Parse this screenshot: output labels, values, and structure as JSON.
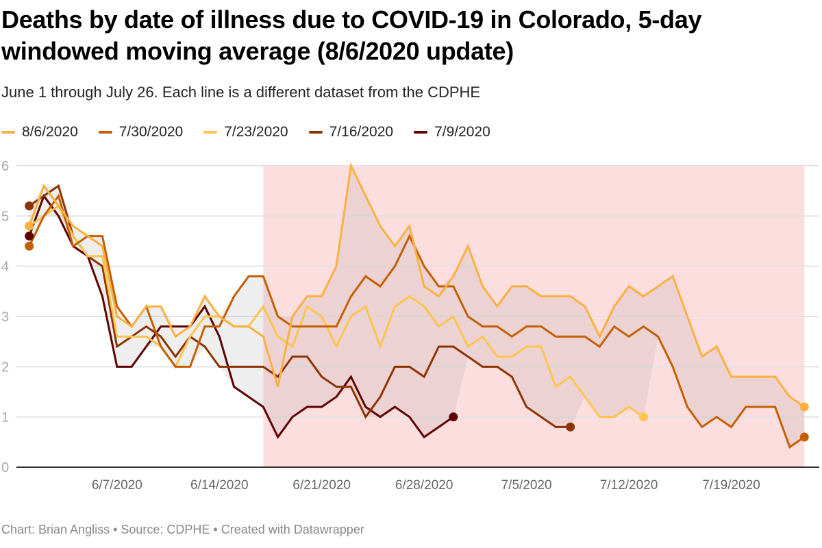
{
  "header": {
    "title": "Deaths by date of illness due to COVID-19 in Colorado, 5-day windowed moving average (8/6/2020 update)",
    "subtitle": "June 1 through July 26. Each line is a different dataset from the CDPHE"
  },
  "footer": {
    "text": "Chart: Brian Angliss • Source: CDPHE • Created with Datawrapper"
  },
  "legend": [
    {
      "label": "8/6/2020",
      "color": "#fbb040"
    },
    {
      "label": "7/30/2020",
      "color": "#c45e00"
    },
    {
      "label": "7/23/2020",
      "color": "#fec44f"
    },
    {
      "label": "7/16/2020",
      "color": "#8c3300"
    },
    {
      "label": "7/9/2020",
      "color": "#5e0000"
    }
  ],
  "chart_data": {
    "type": "line",
    "title": "Deaths by date of illness due to COVID-19 in Colorado, 5-day windowed moving average (8/6/2020 update)",
    "subtitle": "June 1 through July 26. Each line is a different dataset from the CDPHE",
    "xlabel": "",
    "ylabel": "",
    "x_start": "6/1/2020",
    "x_step_days": 1,
    "ylim": [
      0,
      6
    ],
    "yticks": [
      0,
      1,
      2,
      3,
      4,
      5,
      6
    ],
    "xticks": [
      {
        "day": 6,
        "label": "6/7/2020"
      },
      {
        "day": 13,
        "label": "6/14/2020"
      },
      {
        "day": 20,
        "label": "6/21/2020"
      },
      {
        "day": 27,
        "label": "6/28/2020"
      },
      {
        "day": 34,
        "label": "7/5/2020"
      },
      {
        "day": 41,
        "label": "7/12/2020"
      },
      {
        "day": 48,
        "label": "7/19/2020"
      }
    ],
    "grid": true,
    "legend_position": "top-left",
    "highlight_range": {
      "from_day": 16,
      "to_day": 53,
      "color": "#fddede"
    },
    "series": [
      {
        "name": "8/6/2020",
        "color": "#fbb040",
        "values": [
          4.8,
          5.6,
          5.2,
          4.8,
          4.6,
          4.4,
          3.0,
          2.8,
          3.2,
          3.2,
          2.6,
          2.8,
          3.4,
          3.0,
          2.8,
          2.8,
          2.6,
          1.6,
          3.0,
          3.4,
          3.4,
          4.0,
          6.0,
          5.4,
          4.8,
          4.4,
          4.8,
          3.6,
          3.4,
          3.8,
          4.4,
          3.6,
          3.2,
          3.6,
          3.6,
          3.4,
          3.4,
          3.4,
          3.2,
          2.6,
          3.2,
          3.6,
          3.4,
          3.6,
          3.8,
          3.0,
          2.2,
          2.4,
          1.8,
          1.8,
          1.8,
          1.8,
          1.4,
          1.2
        ]
      },
      {
        "name": "7/30/2020",
        "color": "#c45e00",
        "values": [
          4.4,
          5.0,
          5.4,
          4.4,
          4.6,
          4.6,
          3.2,
          2.8,
          3.2,
          2.4,
          2.0,
          2.0,
          2.8,
          2.8,
          3.4,
          3.8,
          3.8,
          3.0,
          2.8,
          2.8,
          2.8,
          2.8,
          3.4,
          3.8,
          3.6,
          4.0,
          4.6,
          4.0,
          3.6,
          3.6,
          3.0,
          2.8,
          2.8,
          2.6,
          2.8,
          2.8,
          2.6,
          2.6,
          2.6,
          2.4,
          2.8,
          2.6,
          2.8,
          2.6,
          2.0,
          1.2,
          0.8,
          1.0,
          0.8,
          1.2,
          1.2,
          1.2,
          0.4,
          0.6
        ]
      },
      {
        "name": "7/23/2020",
        "color": "#fec44f",
        "values": [
          4.8,
          5.0,
          5.2,
          4.6,
          4.2,
          4.2,
          2.6,
          2.6,
          2.6,
          2.4,
          2.0,
          2.6,
          3.0,
          3.0,
          2.8,
          2.8,
          3.2,
          2.6,
          2.4,
          3.2,
          3.0,
          2.4,
          3.0,
          3.2,
          2.4,
          3.2,
          3.4,
          3.2,
          2.8,
          3.0,
          2.4,
          2.6,
          2.2,
          2.2,
          2.4,
          2.4,
          1.6,
          1.8,
          1.4,
          1.0,
          1.0,
          1.2,
          1.0
        ]
      },
      {
        "name": "7/16/2020",
        "color": "#8c3300",
        "values": [
          5.2,
          5.4,
          5.6,
          4.6,
          4.2,
          4.0,
          2.4,
          2.6,
          2.8,
          2.6,
          2.2,
          2.6,
          2.4,
          2.0,
          2.0,
          2.0,
          2.0,
          1.8,
          2.2,
          2.2,
          1.8,
          1.6,
          1.6,
          1.0,
          1.4,
          2.0,
          2.0,
          1.8,
          2.4,
          2.4,
          2.2,
          2.0,
          2.0,
          1.8,
          1.2,
          1.0,
          0.8,
          0.8
        ]
      },
      {
        "name": "7/9/2020",
        "color": "#5e0000",
        "values": [
          4.6,
          5.4,
          5.0,
          4.4,
          4.2,
          3.4,
          2.0,
          2.0,
          2.4,
          2.8,
          2.8,
          2.8,
          3.2,
          2.6,
          1.6,
          1.4,
          1.2,
          0.6,
          1.0,
          1.2,
          1.2,
          1.4,
          1.8,
          1.2,
          1.0,
          1.2,
          1.0,
          0.6,
          0.8,
          1.0
        ]
      }
    ]
  }
}
